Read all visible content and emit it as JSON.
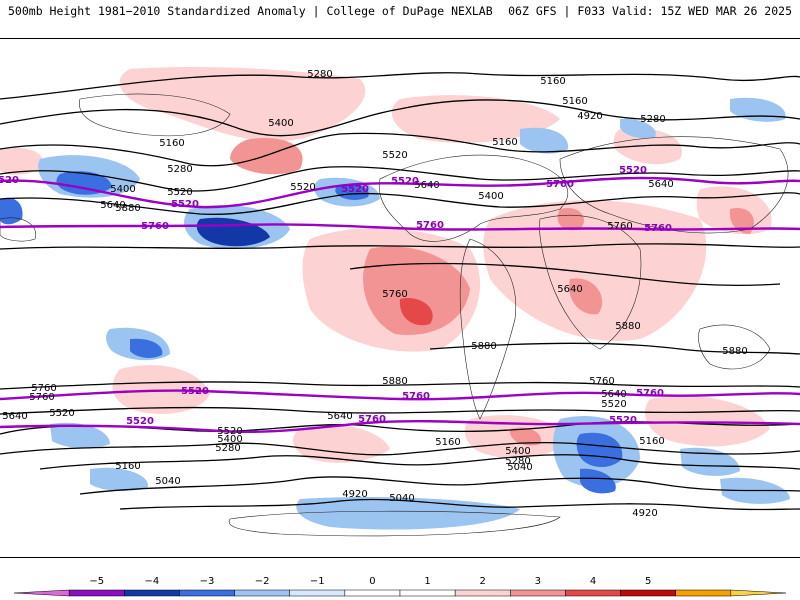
{
  "header": {
    "left": "500mb Height 1981−2010 Standardized Anomaly | College of DuPage NEXLAB",
    "right": "06Z GFS | F033 Valid: 15Z WED MAR 26 2025"
  },
  "colorbar": {
    "ticks": [
      "−5",
      "−4",
      "−3",
      "−2",
      "−1",
      "0",
      "1",
      "2",
      "3",
      "4",
      "5"
    ],
    "colors": [
      "#e066e0",
      "#8a0fbf",
      "#1238a8",
      "#3a6fe0",
      "#9cc4f0",
      "#d6e8fb",
      "#ffffff",
      "#ffffff",
      "#fcd2d2",
      "#f29494",
      "#e44848",
      "#bb0b0b",
      "#f6a000",
      "#ffd040"
    ]
  },
  "contours": {
    "thin_labels": [
      "5280",
      "5160",
      "5160",
      "5160",
      "5280",
      "5520",
      "5400",
      "5160",
      "5520",
      "5280",
      "5400",
      "5640",
      "5520",
      "5400",
      "5640",
      "5640",
      "5760",
      "5640",
      "5880",
      "5880",
      "5880",
      "5880",
      "5880",
      "5760",
      "5760",
      "5640",
      "5520",
      "5400",
      "5280",
      "5160",
      "5040",
      "4920",
      "5040",
      "4920",
      "5520",
      "5640",
      "5160",
      "5400",
      "5280",
      "5040",
      "5160",
      "5760",
      "5640",
      "5520",
      "4920",
      "5760"
    ],
    "highlight_labels": [
      "5520",
      "5760",
      "5520",
      "5760",
      "5520",
      "5760",
      "5520",
      "5760",
      "5760",
      "5520",
      "5520",
      "5520",
      "5760",
      "5760",
      "5520"
    ]
  }
}
